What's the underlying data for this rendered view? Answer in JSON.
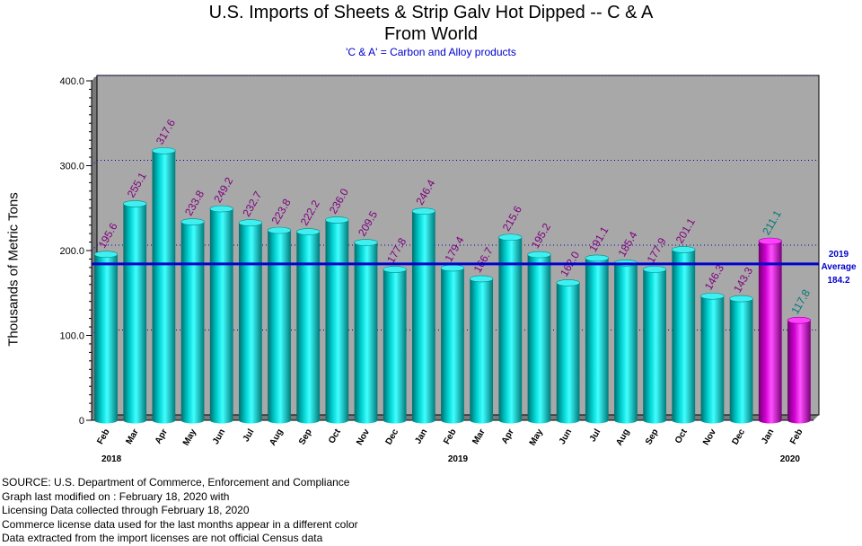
{
  "chart_data": {
    "type": "bar",
    "title": "U.S. Imports of Sheets & Strip Galv Hot Dipped -- C & A",
    "title_line2": "From World",
    "subtitle": "'C & A' = Carbon and Alloy products",
    "ylabel": "Thousands of Metric Tons",
    "xlabel": "",
    "ylim": [
      0,
      400
    ],
    "yticks": [
      "0",
      "100.0",
      "200.0",
      "300.0",
      "400.0"
    ],
    "grid": "horizontal dotted",
    "categories": [
      "Feb",
      "Mar",
      "Apr",
      "May",
      "Jun",
      "Jul",
      "Aug",
      "Sep",
      "Oct",
      "Nov",
      "Dec",
      "Jan",
      "Feb",
      "Mar",
      "Apr",
      "May",
      "Jun",
      "Jul",
      "Aug",
      "Sep",
      "Oct",
      "Nov",
      "Dec",
      "Jan",
      "Feb"
    ],
    "values": [
      195.6,
      255.1,
      317.6,
      233.8,
      249.2,
      232.7,
      223.8,
      222.2,
      236.0,
      209.5,
      177.8,
      246.4,
      179.4,
      166.7,
      215.6,
      195.2,
      162.0,
      191.1,
      185.4,
      177.9,
      201.1,
      146.3,
      143.3,
      211.1,
      117.8
    ],
    "value_labels": [
      "195.6",
      "255.1",
      "317.6",
      "233.8",
      "249.2",
      "232.7",
      "223.8",
      "222.2",
      "236.0",
      "209.5",
      "177.8",
      "246.4",
      "179.4",
      "166.7",
      "215.6",
      "195.2",
      "162.0",
      "191.1",
      "185.4",
      "177.9",
      "201.1",
      "146.3",
      "143.3",
      "211.1",
      "117.8"
    ],
    "license_data_flags": [
      false,
      false,
      false,
      false,
      false,
      false,
      false,
      false,
      false,
      false,
      false,
      false,
      false,
      false,
      false,
      false,
      false,
      false,
      false,
      false,
      false,
      false,
      false,
      true,
      true
    ],
    "year_labels": [
      {
        "index": 0,
        "label": "2018"
      },
      {
        "index": 12,
        "label": "2019"
      },
      {
        "index": 23.5,
        "label": "2020"
      }
    ],
    "average": {
      "label_line1": "2019",
      "label_line2": "Average",
      "value_label": "184.2",
      "value": 184.2
    },
    "colors": {
      "census_bar": "#00b8b8",
      "license_bar": "#cc00cc",
      "census_value_label": "#800080",
      "license_value_label": "#007878",
      "average_line": "#0000cc",
      "plot_bg": "#a8a8a8"
    }
  },
  "footer": {
    "lines": [
      "SOURCE: U.S. Department of Commerce, Enforcement and Compliance",
      "Graph last modified on : February 18, 2020  with",
      "Licensing Data collected through February 18, 2020",
      "Commerce license data used for the last months appear in a different color",
      "Data extracted from the import licenses are not official Census data"
    ]
  }
}
